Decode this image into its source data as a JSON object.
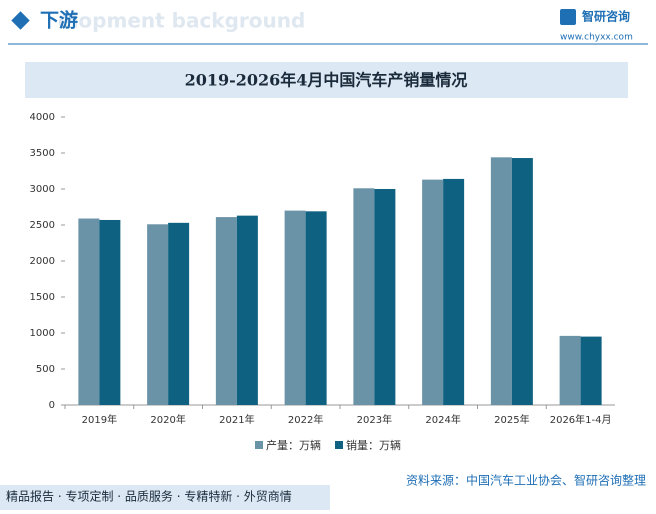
{
  "header": {
    "title": "下游",
    "subtitle": "elopment background",
    "logo": "智研咨询",
    "url": "www.chyxx.com"
  },
  "chart_data": {
    "type": "bar",
    "title": "2019-2026年4月中国汽车产销量情况",
    "categories": [
      "2019年",
      "2020年",
      "2021年",
      "2022年",
      "2023年",
      "2024年",
      "2025年",
      "2026年1-4月"
    ],
    "series": [
      {
        "name": "产量：万辆",
        "color": "#6a93a8",
        "values": [
          2590,
          2510,
          2610,
          2700,
          3010,
          3130,
          3440,
          960
        ]
      },
      {
        "name": "销量：万辆",
        "color": "#0e6180",
        "values": [
          2570,
          2530,
          2630,
          2690,
          3000,
          3140,
          3430,
          950
        ]
      }
    ],
    "ylim": [
      0,
      4000
    ],
    "yticks": [
      0,
      500,
      1000,
      1500,
      2000,
      2500,
      3000,
      3500,
      4000
    ],
    "legend": "bottom"
  },
  "footer": {
    "services": "精品报告 · 专项定制 · 品质服务 · 专精特新 · 外贸商情",
    "source": "资料来源：中国汽车工业协会、智研咨询整理"
  }
}
